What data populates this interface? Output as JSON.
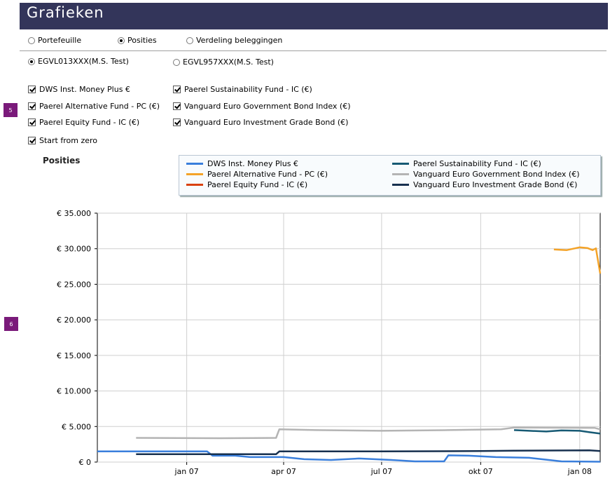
{
  "header": {
    "title": "Grafieken"
  },
  "view_options": [
    {
      "label": "Portefeuille",
      "selected": false
    },
    {
      "label": "Posities",
      "selected": true
    },
    {
      "label": "Verdeling beleggingen",
      "selected": false
    }
  ],
  "accounts": [
    {
      "label": "EGVL013XXX(M.S. Test)",
      "selected": true
    },
    {
      "label": "EGVL957XXX(M.S. Test)",
      "selected": false
    }
  ],
  "fund_checkboxes": [
    {
      "label": "DWS Inst. Money Plus €",
      "checked": true
    },
    {
      "label": "Paerel Alternative Fund - PC (€)",
      "checked": true
    },
    {
      "label": "Paerel Equity Fund - IC (€)",
      "checked": true
    },
    {
      "label": "Paerel Sustainability Fund - IC (€)",
      "checked": true
    },
    {
      "label": "Vanguard Euro Government Bond Index (€)",
      "checked": true
    },
    {
      "label": "Vanguard Euro Investment Grade Bond (€)",
      "checked": true
    }
  ],
  "start_from_zero": {
    "label": "Start from zero",
    "checked": true
  },
  "markers": [
    "5",
    "6"
  ],
  "chart_heading": "Posities",
  "chart_data": {
    "type": "line",
    "title": "Posities",
    "xlabel": "",
    "ylabel": "",
    "ylim": [
      0,
      35000
    ],
    "yticks": [
      0,
      5000,
      10000,
      15000,
      20000,
      25000,
      30000,
      35000
    ],
    "ytick_labels": [
      "€ 0",
      "€ 5.000",
      "€ 10.000",
      "€ 15.000",
      "€ 20.000",
      "€ 25.000",
      "€ 30.000",
      "€ 35.000"
    ],
    "xticks": [
      "2007-01-01",
      "2007-04-01",
      "2007-07-01",
      "2007-10-01",
      "2008-01-01"
    ],
    "xtick_labels": [
      "jan 07",
      "apr 07",
      "jul 07",
      "okt 07",
      "jan 08"
    ],
    "xlim": [
      "2006-10-10",
      "2008-01-20"
    ],
    "grid": true,
    "legend": "top",
    "series": [
      {
        "name": "DWS Inst. Money Plus €",
        "color": "#3a7fdc",
        "points": [
          [
            "2006-10-10",
            1500
          ],
          [
            "2006-12-01",
            1500
          ],
          [
            "2007-01-20",
            1500
          ],
          [
            "2007-01-25",
            900
          ],
          [
            "2007-02-15",
            900
          ],
          [
            "2007-03-01",
            700
          ],
          [
            "2007-04-01",
            700
          ],
          [
            "2007-04-20",
            400
          ],
          [
            "2007-05-15",
            300
          ],
          [
            "2007-06-10",
            500
          ],
          [
            "2007-07-10",
            300
          ],
          [
            "2007-08-01",
            100
          ],
          [
            "2007-08-28",
            100
          ],
          [
            "2007-09-01",
            950
          ],
          [
            "2007-09-20",
            900
          ],
          [
            "2007-10-15",
            700
          ],
          [
            "2007-11-15",
            600
          ],
          [
            "2007-12-15",
            100
          ],
          [
            "2008-01-20",
            50
          ]
        ]
      },
      {
        "name": "Paerel Alternative Fund  - PC (€)",
        "color": "#f4a328",
        "points": [
          [
            "2007-12-08",
            29900
          ],
          [
            "2007-12-20",
            29800
          ],
          [
            "2008-01-01",
            30200
          ],
          [
            "2008-01-08",
            30100
          ],
          [
            "2008-01-13",
            29800
          ],
          [
            "2008-01-16",
            30050
          ],
          [
            "2008-01-20",
            26500
          ]
        ]
      },
      {
        "name": "Paerel Equity Fund  - IC (€)",
        "color": "#d9410f",
        "points": []
      },
      {
        "name": "Paerel Sustainability Fund - IC (€)",
        "color": "#175a74",
        "points": [
          [
            "2007-11-01",
            4500
          ],
          [
            "2007-11-15",
            4400
          ],
          [
            "2007-12-01",
            4300
          ],
          [
            "2007-12-15",
            4450
          ],
          [
            "2008-01-01",
            4400
          ],
          [
            "2008-01-10",
            4200
          ],
          [
            "2008-01-20",
            4000
          ]
        ]
      },
      {
        "name": "Vanguard Euro Government Bond Index (€)",
        "color": "#b4b4b4",
        "points": [
          [
            "2006-11-15",
            3400
          ],
          [
            "2007-02-01",
            3350
          ],
          [
            "2007-03-25",
            3400
          ],
          [
            "2007-03-28",
            4600
          ],
          [
            "2007-05-01",
            4500
          ],
          [
            "2007-07-01",
            4400
          ],
          [
            "2007-09-01",
            4500
          ],
          [
            "2007-10-20",
            4600
          ],
          [
            "2007-11-01",
            4850
          ],
          [
            "2008-01-15",
            4800
          ],
          [
            "2008-01-20",
            4600
          ]
        ]
      },
      {
        "name": "Vanguard Euro Investment Grade Bond (€)",
        "color": "#17304f",
        "points": [
          [
            "2006-11-15",
            1100
          ],
          [
            "2007-03-25",
            1100
          ],
          [
            "2007-03-28",
            1500
          ],
          [
            "2007-07-01",
            1500
          ],
          [
            "2007-10-01",
            1550
          ],
          [
            "2007-11-01",
            1600
          ],
          [
            "2008-01-10",
            1650
          ],
          [
            "2008-01-20",
            1550
          ]
        ]
      }
    ]
  }
}
